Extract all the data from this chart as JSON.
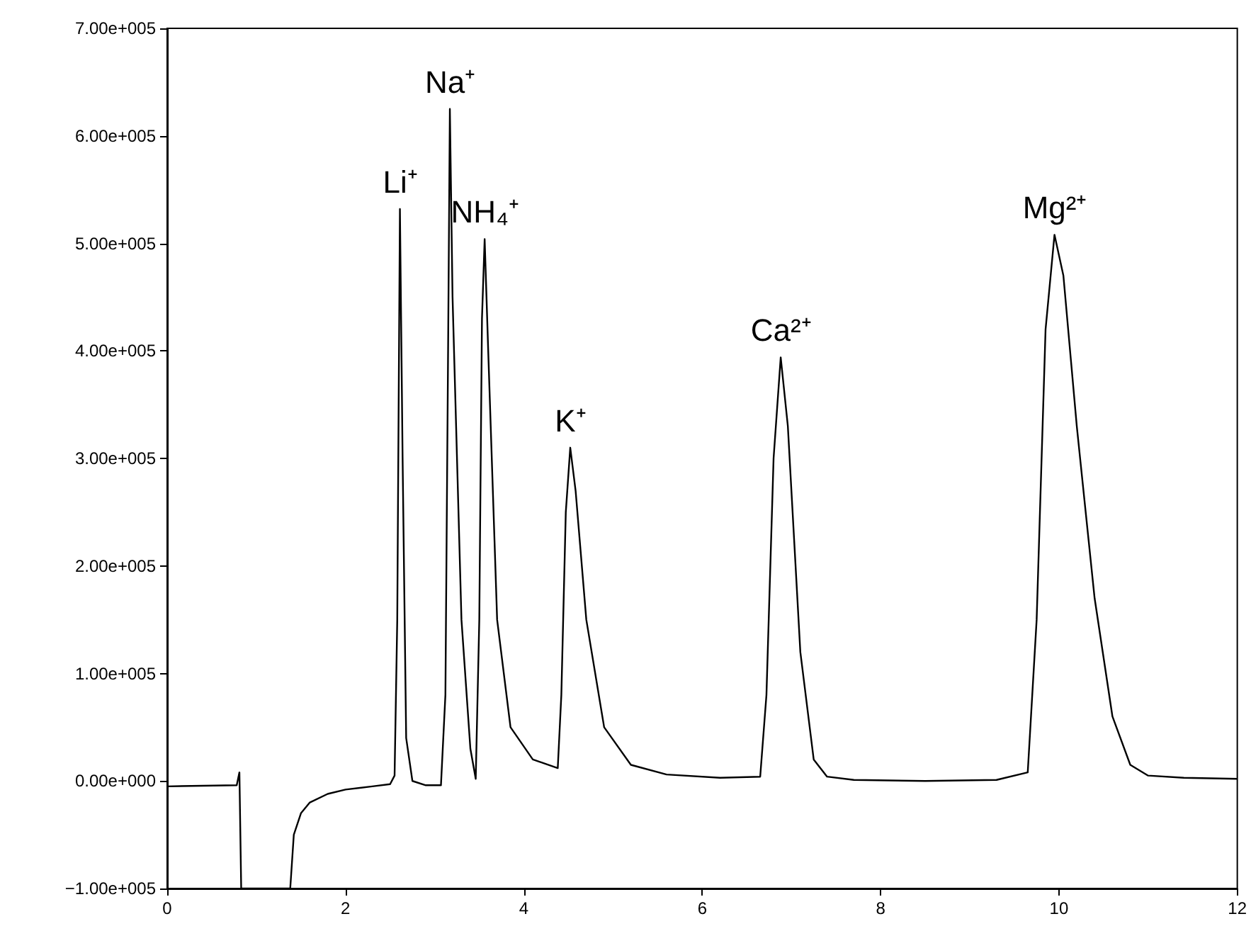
{
  "chart_data": {
    "type": "line",
    "x": [
      0,
      0.78,
      0.81,
      0.83,
      1.38,
      1.42,
      1.5,
      1.6,
      1.8,
      2.0,
      2.3,
      2.5,
      2.55,
      2.58,
      2.61,
      2.64,
      2.68,
      2.75,
      2.9,
      3.07,
      3.12,
      3.15,
      3.17,
      3.2,
      3.3,
      3.4,
      3.46,
      3.5,
      3.53,
      3.56,
      3.6,
      3.7,
      3.85,
      4.1,
      4.38,
      4.42,
      4.47,
      4.52,
      4.58,
      4.7,
      4.9,
      5.2,
      5.6,
      6.2,
      6.65,
      6.72,
      6.8,
      6.88,
      6.96,
      7.1,
      7.25,
      7.4,
      7.7,
      8.5,
      9.3,
      9.65,
      9.75,
      9.85,
      9.95,
      10.05,
      10.2,
      10.4,
      10.6,
      10.8,
      11.0,
      11.4,
      12
    ],
    "series": [
      {
        "color": "#000000",
        "values": [
          -5000,
          -4000,
          8000,
          -100000,
          -100000,
          -50000,
          -30000,
          -20000,
          -12000,
          -8000,
          -5000,
          -3000,
          5000,
          150000,
          532000,
          300000,
          40000,
          0,
          -4000,
          -4000,
          80000,
          400000,
          625000,
          450000,
          150000,
          30000,
          2000,
          150000,
          430000,
          504000,
          400000,
          150000,
          50000,
          20000,
          12000,
          80000,
          250000,
          310000,
          270000,
          150000,
          50000,
          15000,
          6000,
          3000,
          4000,
          80000,
          300000,
          394000,
          330000,
          120000,
          20000,
          4000,
          1000,
          0,
          1000,
          8000,
          150000,
          420000,
          508000,
          470000,
          330000,
          170000,
          60000,
          15000,
          5000,
          3000,
          2000
        ]
      }
    ],
    "annotations": [
      {
        "text": "Li⁺",
        "x": 2.61,
        "y": 532000
      },
      {
        "text": "Na⁺",
        "x": 3.17,
        "y": 625000
      },
      {
        "text": "NH₄⁺",
        "x": 3.56,
        "y": 504000
      },
      {
        "text": "K⁺",
        "x": 4.52,
        "y": 310000
      },
      {
        "text": "Ca²⁺",
        "x": 6.88,
        "y": 394000
      },
      {
        "text": "Mg²⁺",
        "x": 9.95,
        "y": 508000
      }
    ],
    "xlim": [
      0,
      12
    ],
    "xticks": [
      0,
      2,
      4,
      6,
      8,
      10,
      12
    ],
    "ylim": [
      -100000,
      700000
    ],
    "yticks": [
      {
        "value": -100000,
        "label": "−1.00e+005"
      },
      {
        "value": 0,
        "label": "0.00e+000"
      },
      {
        "value": 100000,
        "label": "1.00e+005"
      },
      {
        "value": 200000,
        "label": "2.00e+005"
      },
      {
        "value": 300000,
        "label": "3.00e+005"
      },
      {
        "value": 400000,
        "label": "4.00e+005"
      },
      {
        "value": 500000,
        "label": "5.00e+005"
      },
      {
        "value": 600000,
        "label": "6.00e+005"
      },
      {
        "value": 700000,
        "label": "7.00e+005"
      }
    ],
    "grid": false,
    "marker": "none",
    "line_style": "solid"
  }
}
